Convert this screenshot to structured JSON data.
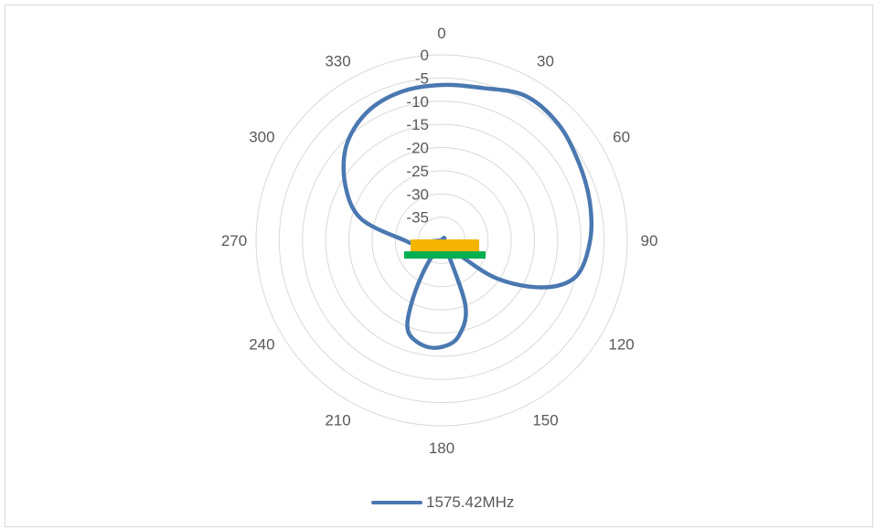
{
  "chart_data": {
    "type": "radar",
    "title": "",
    "angle_labels": [
      "0",
      "30",
      "60",
      "90",
      "120",
      "150",
      "180",
      "210",
      "240",
      "270",
      "300",
      "330"
    ],
    "radial_tick_labels": [
      "0",
      "-5",
      "-10",
      "-15",
      "-20",
      "-25",
      "-30",
      "-35"
    ],
    "rlim": [
      -40,
      0
    ],
    "series": [
      {
        "name": "1575.42MHz",
        "color": "#4a78b0",
        "angles": [
          0,
          15,
          30,
          45,
          60,
          75,
          90,
          105,
          115,
          125,
          135,
          150,
          160,
          170,
          180,
          190,
          200,
          205,
          210,
          220,
          240,
          265,
          270,
          285,
          300,
          315,
          330,
          345,
          360
        ],
        "values": [
          -6.5,
          -6,
          -4,
          -4.5,
          -6,
          -7,
          -8,
          -10,
          -16,
          -26,
          -38,
          -38,
          -25,
          -19,
          -17,
          -17,
          -19,
          -24,
          -32,
          -40,
          -40,
          -34,
          -32,
          -22,
          -16,
          -11,
          -8,
          -6.8,
          -6.5
        ]
      }
    ],
    "legend_position": "bottom",
    "grid": true,
    "colors": {
      "ring": "#d9d9d9",
      "text": "#595959",
      "line": "#4a78b0",
      "pcb_orange": "#f5b400",
      "pcb_green": "#00b050"
    }
  }
}
